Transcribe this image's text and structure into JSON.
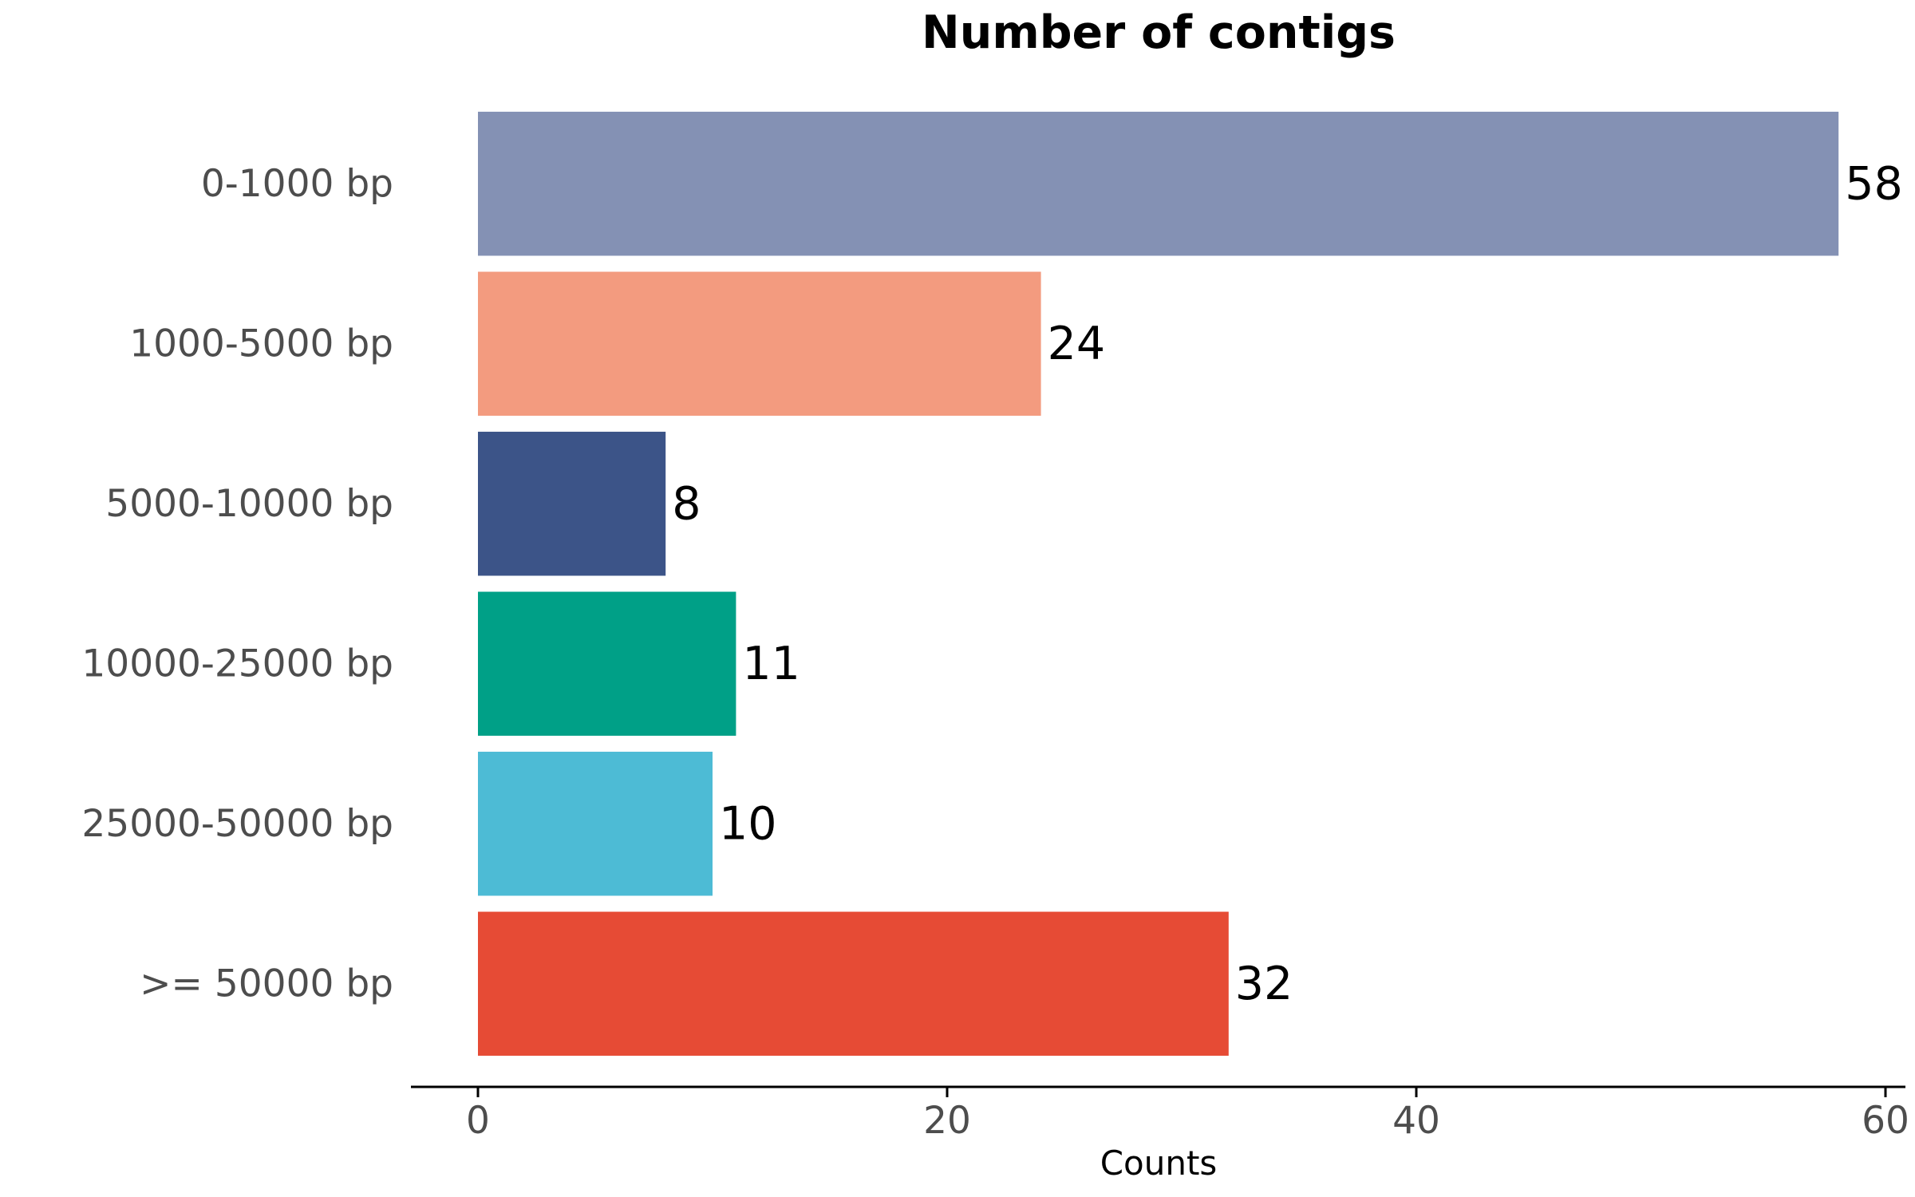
{
  "chart_data": {
    "type": "bar",
    "orientation": "horizontal",
    "title": "Number of contigs",
    "xlabel": "Counts",
    "ylabel": "",
    "categories": [
      "0-1000 bp",
      "1000-5000 bp",
      "5000-10000 bp",
      "10000-25000 bp",
      "25000-50000 bp",
      ">= 50000 bp"
    ],
    "values": [
      58,
      24,
      8,
      11,
      10,
      32
    ],
    "colors": [
      "#8491B4",
      "#F39B7F",
      "#3C5488",
      "#00A087",
      "#4DBBD5",
      "#E64B35"
    ],
    "xlim": [
      0,
      60
    ],
    "xticks": [
      0,
      20,
      40,
      60
    ],
    "grid": false,
    "legend": "none"
  }
}
